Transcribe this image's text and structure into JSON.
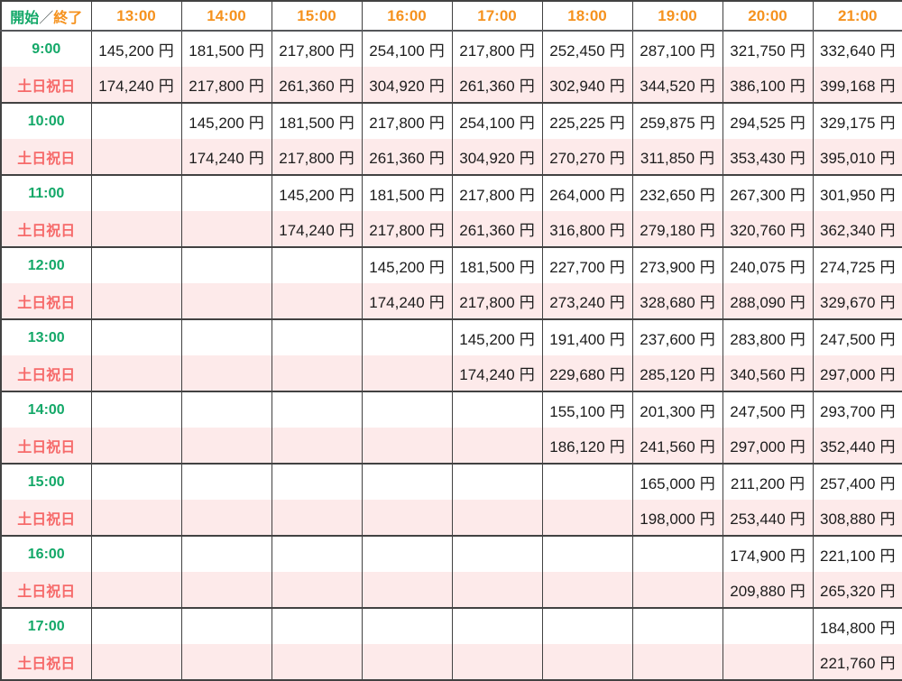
{
  "colors": {
    "orange": "#f5921e",
    "green": "#13a868",
    "red": "#f66a6a",
    "pink": "#fdeaea",
    "border": "#424242"
  },
  "chart_data": {
    "type": "table",
    "header": {
      "corner": {
        "start": "開始",
        "slash": "／",
        "end": "終了"
      },
      "end_times": [
        "13:00",
        "14:00",
        "15:00",
        "16:00",
        "17:00",
        "18:00",
        "19:00",
        "20:00",
        "21:00"
      ]
    },
    "weekend_label": "土日祝日",
    "yen_suffix": "円",
    "rows": [
      {
        "start": "9:00",
        "weekday": [
          "145,200",
          "181,500",
          "217,800",
          "254,100",
          "217,800",
          "252,450",
          "287,100",
          "321,750",
          "332,640"
        ],
        "weekend": [
          "174,240",
          "217,800",
          "261,360",
          "304,920",
          "261,360",
          "302,940",
          "344,520",
          "386,100",
          "399,168"
        ]
      },
      {
        "start": "10:00",
        "weekday": [
          "",
          "145,200",
          "181,500",
          "217,800",
          "254,100",
          "225,225",
          "259,875",
          "294,525",
          "329,175"
        ],
        "weekend": [
          "",
          "174,240",
          "217,800",
          "261,360",
          "304,920",
          "270,270",
          "311,850",
          "353,430",
          "395,010"
        ]
      },
      {
        "start": "11:00",
        "weekday": [
          "",
          "",
          "145,200",
          "181,500",
          "217,800",
          "264,000",
          "232,650",
          "267,300",
          "301,950"
        ],
        "weekend": [
          "",
          "",
          "174,240",
          "217,800",
          "261,360",
          "316,800",
          "279,180",
          "320,760",
          "362,340"
        ]
      },
      {
        "start": "12:00",
        "weekday": [
          "",
          "",
          "",
          "145,200",
          "181,500",
          "227,700",
          "273,900",
          "240,075",
          "274,725"
        ],
        "weekend": [
          "",
          "",
          "",
          "174,240",
          "217,800",
          "273,240",
          "328,680",
          "288,090",
          "329,670"
        ]
      },
      {
        "start": "13:00",
        "weekday": [
          "",
          "",
          "",
          "",
          "145,200",
          "191,400",
          "237,600",
          "283,800",
          "247,500"
        ],
        "weekend": [
          "",
          "",
          "",
          "",
          "174,240",
          "229,680",
          "285,120",
          "340,560",
          "297,000"
        ]
      },
      {
        "start": "14:00",
        "weekday": [
          "",
          "",
          "",
          "",
          "",
          "155,100",
          "201,300",
          "247,500",
          "293,700"
        ],
        "weekend": [
          "",
          "",
          "",
          "",
          "",
          "186,120",
          "241,560",
          "297,000",
          "352,440"
        ]
      },
      {
        "start": "15:00",
        "weekday": [
          "",
          "",
          "",
          "",
          "",
          "",
          "165,000",
          "211,200",
          "257,400"
        ],
        "weekend": [
          "",
          "",
          "",
          "",
          "",
          "",
          "198,000",
          "253,440",
          "308,880"
        ]
      },
      {
        "start": "16:00",
        "weekday": [
          "",
          "",
          "",
          "",
          "",
          "",
          "",
          "174,900",
          "221,100"
        ],
        "weekend": [
          "",
          "",
          "",
          "",
          "",
          "",
          "",
          "209,880",
          "265,320"
        ]
      },
      {
        "start": "17:00",
        "weekday": [
          "",
          "",
          "",
          "",
          "",
          "",
          "",
          "",
          "184,800"
        ],
        "weekend": [
          "",
          "",
          "",
          "",
          "",
          "",
          "",
          "",
          "221,760"
        ]
      }
    ]
  }
}
